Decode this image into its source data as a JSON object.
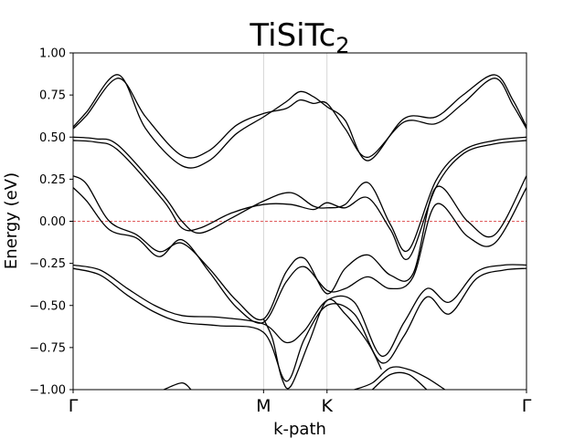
{
  "chart_data": {
    "type": "line",
    "title": "TiSiTc",
    "title_subscript": "2",
    "xlabel": "k-path",
    "ylabel": "Energy (eV)",
    "ylim": [
      -1.0,
      1.0
    ],
    "yticks": [
      -1.0,
      -0.75,
      -0.5,
      -0.25,
      0.0,
      0.25,
      0.5,
      0.75,
      1.0
    ],
    "ytick_labels": [
      "−1.00",
      "−0.75",
      "−0.50",
      "−0.25",
      "0.00",
      "0.25",
      "0.50",
      "0.75",
      "1.00"
    ],
    "xlim": [
      0.0,
      1.0
    ],
    "kpoints": [
      {
        "label": "Γ",
        "x": 0.0
      },
      {
        "label": "M",
        "x": 0.42
      },
      {
        "label": "K",
        "x": 0.56
      },
      {
        "label": "Γ",
        "x": 1.0
      }
    ],
    "kpoint_vlines": true,
    "fermi_level": {
      "y": 0.0,
      "color": "#d62728",
      "style": "dashed"
    },
    "series_color": "#000000",
    "series": [
      {
        "x": [
          0,
          0.03,
          0.1,
          0.16,
          0.24,
          0.3,
          0.36,
          0.42,
          0.47,
          0.5,
          0.53,
          0.56,
          0.6,
          0.65,
          0.73,
          0.8,
          0.86,
          0.93,
          0.97,
          1.0
        ],
        "values": [
          0.55,
          0.63,
          0.85,
          0.62,
          0.39,
          0.42,
          0.57,
          0.64,
          0.67,
          0.72,
          0.7,
          0.7,
          0.55,
          0.38,
          0.59,
          0.58,
          0.7,
          0.85,
          0.69,
          0.55
        ]
      },
      {
        "x": [
          0,
          0.03,
          0.1,
          0.16,
          0.24,
          0.3,
          0.36,
          0.42,
          0.47,
          0.5,
          0.53,
          0.56,
          0.6,
          0.65,
          0.73,
          0.8,
          0.86,
          0.93,
          0.97,
          1.0
        ],
        "values": [
          0.56,
          0.65,
          0.87,
          0.55,
          0.33,
          0.36,
          0.52,
          0.62,
          0.71,
          0.77,
          0.74,
          0.68,
          0.6,
          0.36,
          0.61,
          0.62,
          0.75,
          0.87,
          0.72,
          0.56
        ]
      },
      {
        "x": [
          0,
          0.05,
          0.1,
          0.2,
          0.24,
          0.28,
          0.35,
          0.42,
          0.48,
          0.53,
          0.56,
          0.6,
          0.65,
          0.7,
          0.74,
          0.8,
          0.86,
          0.93,
          1.0
        ],
        "values": [
          0.5,
          0.49,
          0.45,
          0.15,
          0.0,
          -0.07,
          0.02,
          0.12,
          0.17,
          0.09,
          0.08,
          0.1,
          0.23,
          -0.02,
          -0.17,
          0.24,
          0.42,
          0.48,
          0.5
        ]
      },
      {
        "x": [
          0,
          0.05,
          0.1,
          0.2,
          0.24,
          0.28,
          0.35,
          0.42,
          0.48,
          0.53,
          0.56,
          0.6,
          0.65,
          0.7,
          0.74,
          0.8,
          0.86,
          0.93,
          1.0
        ],
        "values": [
          0.48,
          0.47,
          0.42,
          0.12,
          -0.04,
          -0.04,
          0.05,
          0.1,
          0.1,
          0.07,
          0.11,
          0.08,
          0.14,
          -0.05,
          -0.22,
          0.2,
          0.4,
          0.46,
          0.48
        ]
      },
      {
        "x": [
          0,
          0.03,
          0.08,
          0.14,
          0.19,
          0.24,
          0.3,
          0.36,
          0.42,
          0.47,
          0.51,
          0.56,
          0.6,
          0.65,
          0.7,
          0.75,
          0.8,
          0.87,
          0.93,
          1.0
        ],
        "values": [
          0.27,
          0.22,
          0.0,
          -0.08,
          -0.18,
          -0.13,
          -0.28,
          -0.47,
          -0.58,
          -0.3,
          -0.22,
          -0.43,
          -0.28,
          -0.2,
          -0.32,
          -0.31,
          0.2,
          0.0,
          -0.08,
          0.27
        ]
      },
      {
        "x": [
          0,
          0.03,
          0.08,
          0.14,
          0.19,
          0.24,
          0.3,
          0.36,
          0.42,
          0.47,
          0.51,
          0.56,
          0.6,
          0.65,
          0.7,
          0.75,
          0.8,
          0.87,
          0.93,
          1.0
        ],
        "values": [
          0.2,
          0.12,
          -0.05,
          -0.1,
          -0.21,
          -0.11,
          -0.3,
          -0.51,
          -0.6,
          -0.36,
          -0.27,
          -0.41,
          -0.4,
          -0.33,
          -0.4,
          -0.33,
          0.1,
          -0.09,
          -0.13,
          0.2
        ]
      },
      {
        "x": [
          0,
          0.06,
          0.12,
          0.18,
          0.24,
          0.32,
          0.42,
          0.47,
          0.51,
          0.56,
          0.62,
          0.68,
          0.73,
          0.78,
          0.83,
          0.89,
          0.95,
          1.0
        ],
        "values": [
          -0.26,
          -0.29,
          -0.4,
          -0.5,
          -0.56,
          -0.57,
          -0.61,
          -0.72,
          -0.65,
          -0.47,
          -0.48,
          -0.8,
          -0.6,
          -0.4,
          -0.48,
          -0.3,
          -0.26,
          -0.26
        ]
      },
      {
        "x": [
          0,
          0.06,
          0.12,
          0.18,
          0.24,
          0.32,
          0.42,
          0.47,
          0.51,
          0.56,
          0.62,
          0.68,
          0.73,
          0.78,
          0.83,
          0.89,
          0.95,
          1.0
        ],
        "values": [
          -0.28,
          -0.32,
          -0.44,
          -0.54,
          -0.6,
          -0.62,
          -0.66,
          -0.95,
          -0.7,
          -0.5,
          -0.55,
          -0.84,
          -0.68,
          -0.45,
          -0.55,
          -0.34,
          -0.29,
          -0.28
        ]
      },
      {
        "x": [
          0.42,
          0.44,
          0.46,
          0.48,
          0.52,
          0.56,
          0.6,
          0.65,
          0.68
        ],
        "values": [
          -0.58,
          -0.7,
          -0.93,
          -0.98,
          -0.72,
          -0.47,
          -0.55,
          -0.72,
          -0.88
        ]
      },
      {
        "x": [
          0.2,
          0.24,
          0.26
        ],
        "values": [
          -1.0,
          -0.96,
          -1.0
        ]
      },
      {
        "x": [
          0.62,
          0.66,
          0.7,
          0.74,
          0.78,
          0.82
        ],
        "values": [
          -1.0,
          -0.96,
          -0.87,
          -0.88,
          -0.93,
          -1.0
        ]
      },
      {
        "x": [
          0.66,
          0.7,
          0.74,
          0.78
        ],
        "values": [
          -1.0,
          -0.91,
          -0.91,
          -1.0
        ]
      }
    ]
  }
}
